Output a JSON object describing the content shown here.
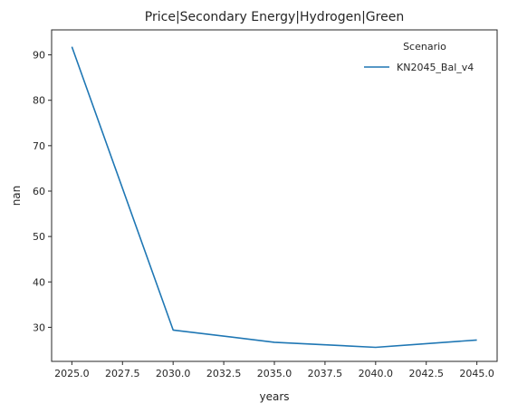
{
  "chart_data": {
    "type": "line",
    "title": "Price|Secondary Energy|Hydrogen|Green",
    "xlabel": "years",
    "ylabel": "nan",
    "xlim": [
      2024.0,
      2046.0
    ],
    "ylim": [
      22.5,
      95.5
    ],
    "x_ticks": [
      2025.0,
      2027.5,
      2030.0,
      2032.5,
      2035.0,
      2037.5,
      2040.0,
      2042.5,
      2045.0
    ],
    "x_tick_labels": [
      "2025.0",
      "2027.5",
      "2030.0",
      "2032.5",
      "2035.0",
      "2037.5",
      "2040.0",
      "2042.5",
      "2045.0"
    ],
    "y_ticks": [
      30,
      40,
      50,
      60,
      70,
      80,
      90
    ],
    "y_tick_labels": [
      "30",
      "40",
      "50",
      "60",
      "70",
      "80",
      "90"
    ],
    "grid": false,
    "legend": {
      "title": "Scenario",
      "placement": "top-right"
    },
    "series": [
      {
        "name": "KN2045_Bal_v4",
        "color": "#1f77b4",
        "x": [
          2025,
          2030,
          2035,
          2040,
          2045
        ],
        "y": [
          91.8,
          29.4,
          26.7,
          25.6,
          27.2
        ]
      }
    ]
  }
}
